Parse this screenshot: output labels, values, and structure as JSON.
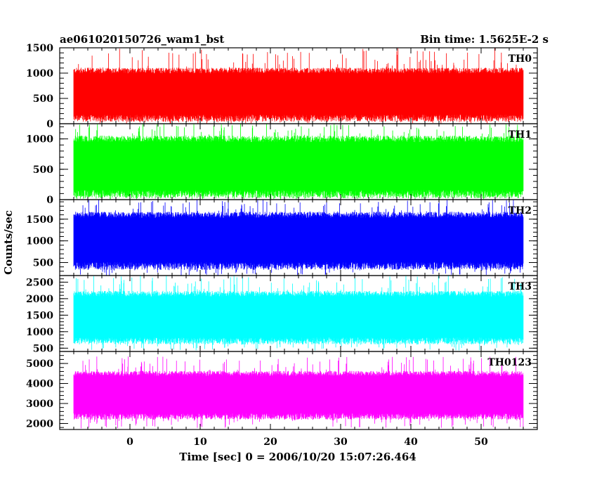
{
  "header": {
    "left_title": "ae061020150726_wam1_bst",
    "right_title": "Bin time: 1.5625E-2 s"
  },
  "y_axis_label": "Counts/sec",
  "x_axis_label": "Time [sec] 0 = 2006/10/20 15:07:26.464",
  "chart_data": {
    "type": "line",
    "title": "ae061020150726_wam1_bst",
    "subtitle": "Bin time: 1.5625E-2 s",
    "xlabel": "Time [sec] 0 = 2006/10/20 15:07:26.464",
    "ylabel": "Counts/sec",
    "xlim": [
      -10,
      58
    ],
    "x_data_range": [
      -8,
      56
    ],
    "x_ticks": [
      0,
      10,
      20,
      30,
      40,
      50
    ],
    "x_tick_labels": [
      "0",
      "10",
      "20",
      "30",
      "40",
      "50"
    ],
    "grid": false,
    "panels": [
      {
        "name": "TH0",
        "color": "#ff0000",
        "ylim": [
          0,
          1500
        ],
        "y_ticks": [
          0,
          500,
          1000,
          1500
        ],
        "y_tick_labels": [
          "0",
          "500",
          "1000",
          "1500"
        ],
        "band_low": 110,
        "band_high": 1050,
        "spike_low": 0,
        "spike_high": 1500
      },
      {
        "name": "TH1",
        "color": "#00ff00",
        "ylim": [
          0,
          1250
        ],
        "y_ticks": [
          0,
          500,
          1000
        ],
        "y_tick_labels": [
          "0",
          "500",
          "1000"
        ],
        "band_low": 90,
        "band_high": 1000,
        "spike_low": 0,
        "spike_high": 1250
      },
      {
        "name": "TH2",
        "color": "#0000ff",
        "ylim": [
          200,
          1950
        ],
        "y_ticks": [
          500,
          1000,
          1500
        ],
        "y_tick_labels": [
          "500",
          "1000",
          "1500"
        ],
        "band_low": 420,
        "band_high": 1600,
        "spike_low": 200,
        "spike_high": 1950
      },
      {
        "name": "TH3",
        "color": "#00ffff",
        "ylim": [
          400,
          2700
        ],
        "y_ticks": [
          500,
          1000,
          1500,
          2000,
          2500
        ],
        "y_tick_labels": [
          "500",
          "1000",
          "1500",
          "2000",
          "2500"
        ],
        "band_low": 720,
        "band_high": 2150,
        "spike_low": 430,
        "spike_high": 2700
      },
      {
        "name": "TH0123",
        "color": "#ff00ff",
        "ylim": [
          1700,
          5600
        ],
        "y_ticks": [
          2000,
          3000,
          4000,
          5000
        ],
        "y_tick_labels": [
          "2000",
          "3000",
          "4000",
          "5000"
        ],
        "band_low": 2350,
        "band_high": 4500,
        "spike_low": 1750,
        "spike_high": 5350
      }
    ]
  }
}
